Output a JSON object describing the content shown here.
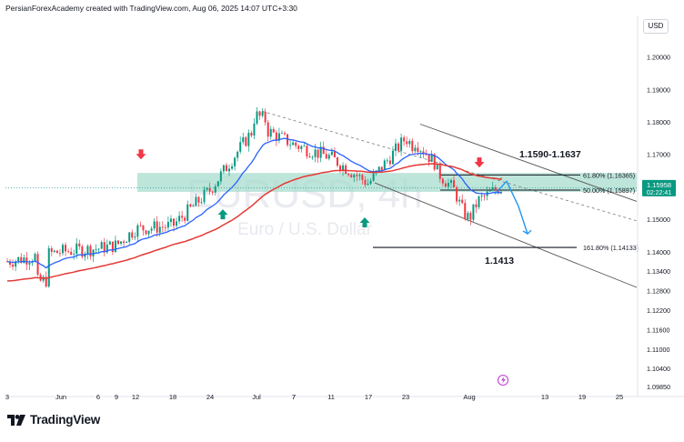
{
  "header": {
    "attribution": "PersianForexAcademy created with TradingView.com, Aug 06, 2025 14:07 UTC+3:30"
  },
  "currency_button": "USD",
  "watermark": {
    "symbol": "EURUSD, 4h",
    "description": "Euro / U.S. Dollar"
  },
  "brand": {
    "name": "TradingView",
    "icon": "tradingview-logo-icon"
  },
  "colors": {
    "up_candle": "#089981",
    "down_candle": "#f23645",
    "ma_fast": "#2962ff",
    "ma_slow": "#e53935",
    "zone_fill": "#a8dccd",
    "price_label_bg": "#089981",
    "projection": "#2196f3"
  },
  "price_label": {
    "price": "1.15958",
    "countdown": "02:22:41"
  },
  "chart_data": {
    "type": "candlestick",
    "timeframe": "4h",
    "symbol": "EURUSD",
    "ylim": [
      1.0965,
      1.2125
    ],
    "y_ticks": [
      "1.20000",
      "1.19000",
      "1.18000",
      "1.17000",
      "1.16000",
      "1.15000",
      "1.14000",
      "1.13400",
      "1.12800",
      "1.12200",
      "1.11600",
      "1.11000",
      "1.10400",
      "1.09850"
    ],
    "x_ticks": [
      "3",
      "Jun",
      "6",
      "9",
      "12",
      "18",
      "24",
      "Jul",
      "7",
      "11",
      "17",
      "23",
      "Aug",
      "7",
      "13",
      "19",
      "25"
    ],
    "price_path": [
      [
        "3",
        1.137
      ],
      [
        "Jun",
        1.14
      ],
      [
        "6",
        1.141
      ],
      [
        "9",
        1.142
      ],
      [
        "12",
        1.147
      ],
      [
        "18",
        1.148
      ],
      [
        "24",
        1.159
      ],
      [
        "Jul",
        1.179
      ],
      [
        "7",
        1.173
      ],
      [
        "11",
        1.169
      ],
      [
        "17",
        1.161
      ],
      [
        "23",
        1.175
      ],
      [
        "Aug",
        1.154
      ],
      [
        "Aug 6",
        1.1596
      ]
    ],
    "annotations": [
      {
        "text": "1.1590-1.1637",
        "type": "resistance-zone-label"
      },
      {
        "text": "1.1413",
        "type": "support-label"
      },
      {
        "text": "61.80% (1.16365)",
        "type": "fibonacci-level",
        "value": 1.16365
      },
      {
        "text": "50.00% (1.15897)",
        "type": "fibonacci-level",
        "value": 1.15897
      },
      {
        "text": "161.80% (1.14133)",
        "type": "fibonacci-level",
        "value": 1.14133
      }
    ],
    "zone": {
      "low": 1.159,
      "high": 1.1637
    },
    "support_line": 1.1413,
    "last_price": 1.15958,
    "moving_averages": [
      {
        "color": "#2962ff"
      },
      {
        "color": "#e53935"
      }
    ],
    "signals": [
      {
        "type": "sell",
        "date": "12",
        "icon": "down-arrow-icon"
      },
      {
        "type": "buy",
        "date": "24",
        "icon": "up-arrow-icon"
      },
      {
        "type": "buy",
        "date": "17",
        "icon": "up-arrow-icon"
      },
      {
        "type": "sell",
        "date": "Aug",
        "icon": "down-arrow-icon"
      }
    ],
    "projection": {
      "icon": "projection-arrow-icon",
      "color": "#2196f3"
    },
    "event_icon": "lightning-event-icon",
    "grid": false,
    "legend": "none"
  }
}
